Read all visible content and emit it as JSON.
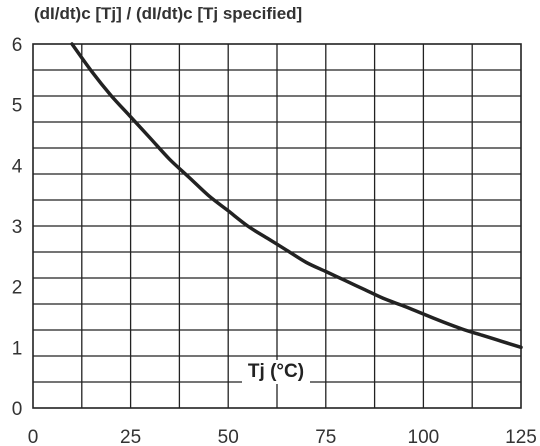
{
  "chart_data": {
    "type": "line",
    "title": "(dI/dt)c [Tj] / (dI/dt)c [Tj specified]",
    "xlabel": "Tj (°C)",
    "ylabel": "",
    "xlim": [
      0,
      125
    ],
    "ylim": [
      0,
      6
    ],
    "x_ticks": [
      "0",
      "25",
      "50",
      "75",
      "100",
      "125"
    ],
    "y_ticks": [
      "0",
      "1",
      "2",
      "3",
      "4",
      "5",
      "6"
    ],
    "grid": true,
    "series": [
      {
        "x": [
          10,
          15,
          20,
          25,
          30,
          35,
          40,
          45,
          50,
          55,
          60,
          65,
          70,
          75,
          80,
          85,
          90,
          95,
          100,
          105,
          110,
          115,
          120,
          125
        ],
        "y": [
          6.0,
          5.55,
          5.15,
          4.8,
          4.45,
          4.1,
          3.8,
          3.5,
          3.25,
          3.0,
          2.8,
          2.6,
          2.4,
          2.25,
          2.1,
          1.95,
          1.8,
          1.68,
          1.55,
          1.42,
          1.3,
          1.2,
          1.1,
          1.0
        ]
      }
    ],
    "colors": {
      "curve": "#222222",
      "grid": "#222222",
      "text": "#333333"
    }
  }
}
